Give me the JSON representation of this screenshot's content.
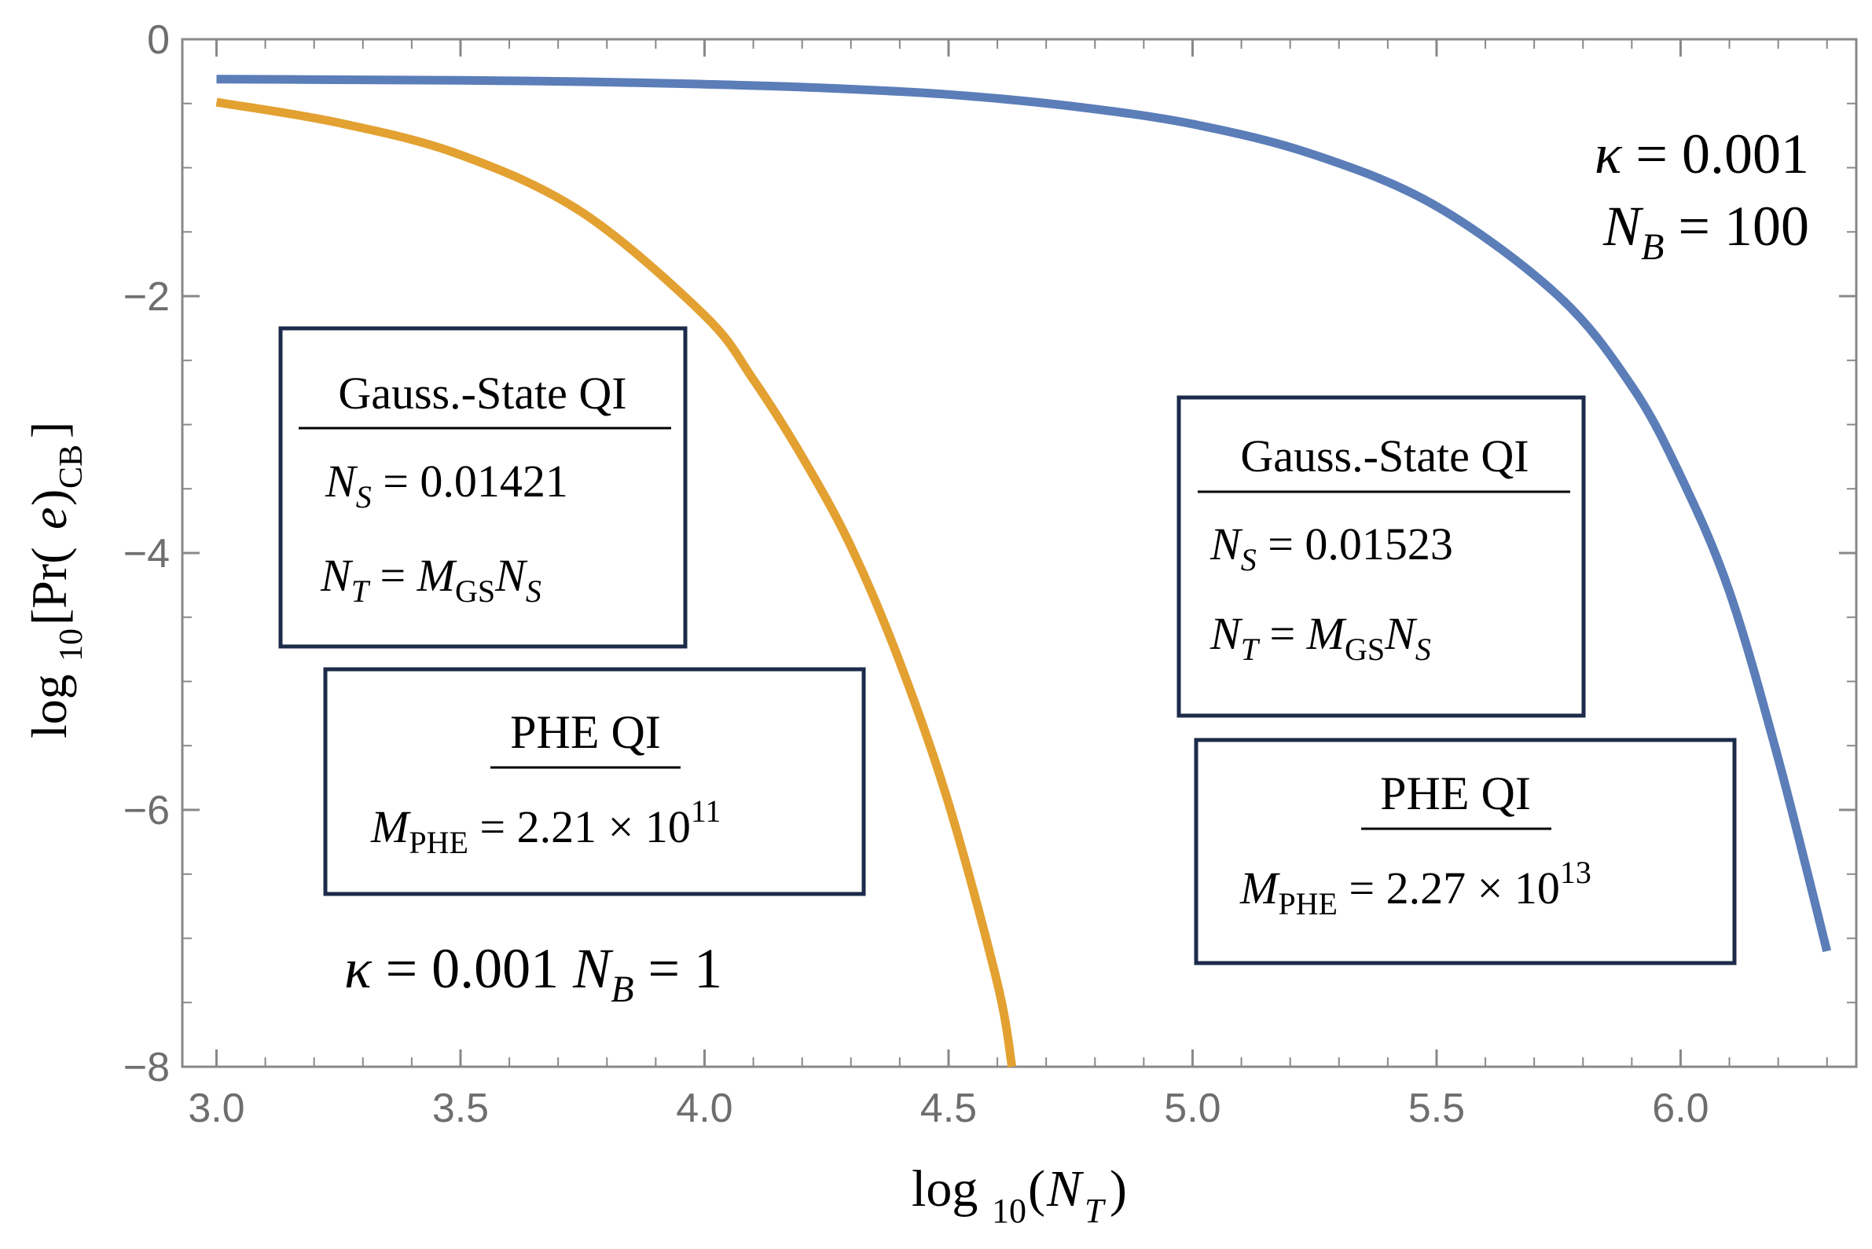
{
  "chart_data": {
    "type": "line",
    "title": "",
    "xlabel": "log10(N_T)",
    "ylabel": "log10[Pr(e)_CB]",
    "xlim": [
      2.93,
      6.36
    ],
    "ylim": [
      -8,
      0
    ],
    "grid": false,
    "x_ticks": [
      3.0,
      3.5,
      4.0,
      4.5,
      5.0,
      5.5,
      6.0
    ],
    "x_tick_labels": [
      "3.0",
      "3.5",
      "4.0",
      "4.5",
      "5.0",
      "5.5",
      "6.0"
    ],
    "y_ticks": [
      0,
      -2,
      -4,
      -6,
      -8
    ],
    "y_tick_labels": [
      "0",
      "−2",
      "−4",
      "−6",
      "−8"
    ],
    "series": [
      {
        "color": "#5b7db8",
        "x": [
          3.0,
          3.25,
          3.5,
          3.75,
          4.0,
          4.25,
          4.5,
          4.75,
          5.0,
          5.25,
          5.5,
          5.75,
          5.9,
          6.0,
          6.1,
          6.2,
          6.3
        ],
        "y": [
          -0.31,
          -0.315,
          -0.32,
          -0.33,
          -0.35,
          -0.38,
          -0.43,
          -0.52,
          -0.66,
          -0.9,
          -1.3,
          -2.0,
          -2.7,
          -3.4,
          -4.3,
          -5.6,
          -7.1
        ]
      },
      {
        "color": "#e3a131",
        "x": [
          3.0,
          3.25,
          3.5,
          3.75,
          4.0,
          4.1,
          4.2,
          4.3,
          4.4,
          4.5,
          4.6,
          4.63
        ],
        "y": [
          -0.49,
          -0.65,
          -0.9,
          -1.35,
          -2.15,
          -2.65,
          -3.25,
          -3.95,
          -4.85,
          -5.95,
          -7.35,
          -8.0
        ]
      }
    ],
    "annotations": {
      "left_box1": {
        "title": "Gauss.-State QI",
        "line1": "N_S = 0.01421",
        "line2": "N_T = M_GS N_S"
      },
      "left_box2": {
        "title": "PHE QI",
        "line1": "M_PHE = 2.21 × 10^11"
      },
      "left_params": "κ = 0.001   N_B = 1",
      "right_box1": {
        "title": "Gauss.-State QI",
        "line1": "N_S = 0.01523",
        "line2": "N_T = M_GS N_S"
      },
      "right_box2": {
        "title": "PHE QI",
        "line1": "M_PHE = 2.27 × 10^13"
      },
      "right_params": [
        "κ = 0.001",
        "N_B = 100"
      ]
    }
  }
}
